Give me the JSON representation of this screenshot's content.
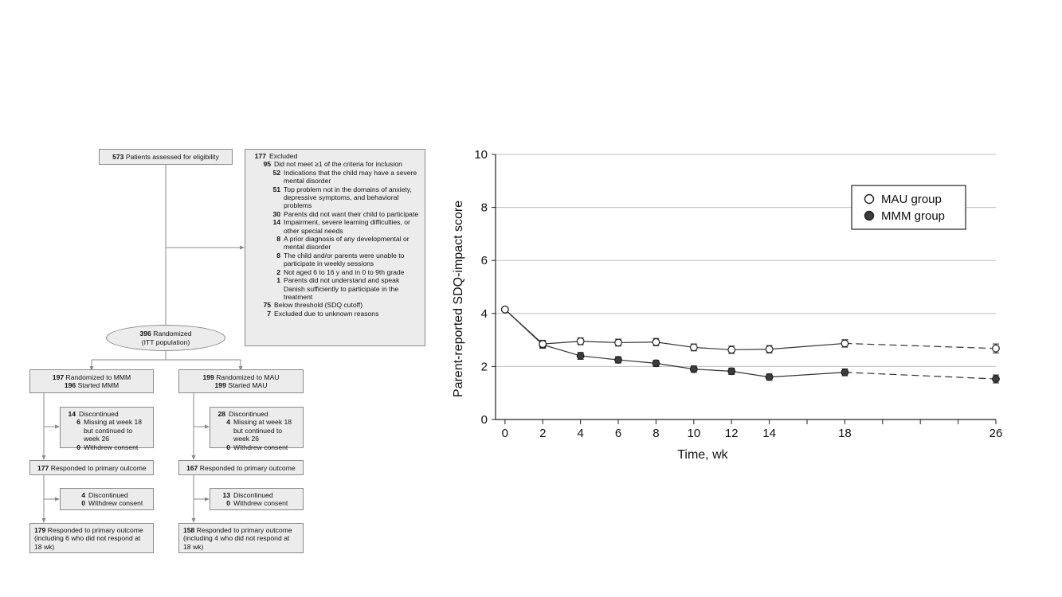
{
  "flow": {
    "assessed": {
      "n": "573",
      "text": "Patients assessed for eligibility"
    },
    "excluded": {
      "n": "177",
      "label": "Excluded",
      "items": [
        {
          "level": 1,
          "n": "95",
          "text": "Did not meet ≥1 of the criteria for inclusion"
        },
        {
          "level": 2,
          "n": "52",
          "text": "Indications that the child may have a severe mental disorder"
        },
        {
          "level": 2,
          "n": "51",
          "text": "Top problem not in the domains of anxiety, depressive symptoms, and behavioral problems"
        },
        {
          "level": 2,
          "n": "30",
          "text": "Parents did not want their child to participate"
        },
        {
          "level": 2,
          "n": "14",
          "text": "Impairment, severe learning difficulties, or other special needs"
        },
        {
          "level": 2,
          "n": "8",
          "text": "A prior diagnosis of any developmental or mental disorder"
        },
        {
          "level": 2,
          "n": "8",
          "text": "The child and/or parents were unable to participate in weekly sessions"
        },
        {
          "level": 2,
          "n": "2",
          "text": "Not aged 6 to 16 y and in 0 to 9th grade"
        },
        {
          "level": 2,
          "n": "1",
          "text": "Parents did not understand and speak Danish sufficiently to participate in the treatment"
        },
        {
          "level": 1,
          "n": "75",
          "text": "Below threshold (SDQ cutoff)"
        },
        {
          "level": 1,
          "n": "7",
          "text": "Excluded due to unknown reasons"
        }
      ]
    },
    "randomized": {
      "n": "396",
      "text": "Randomized",
      "sub": "(ITT population)"
    },
    "mmm": {
      "alloc": {
        "n1": "197",
        "t1": "Randomized to MMM",
        "n2": "196",
        "t2": "Started MMM"
      },
      "disc1": {
        "n": "14",
        "t": "Discontinued",
        "items": [
          {
            "n": "6",
            "t": "Missing at week 18 but continued to week 26"
          },
          {
            "n": "0",
            "t": "Withdrew consent"
          }
        ]
      },
      "resp1": {
        "n": "177",
        "t": "Responded to primary outcome"
      },
      "disc2": {
        "n": "4",
        "t": "Discontinued",
        "items": [
          {
            "n": "0",
            "t": "Withdrew consent"
          }
        ]
      },
      "resp2": {
        "n": "179",
        "t": "Responded to primary outcome (including 6 who did not respond at 18 wk)"
      }
    },
    "mau": {
      "alloc": {
        "n1": "199",
        "t1": "Randomized to MAU",
        "n2": "199",
        "t2": "Started MAU"
      },
      "disc1": {
        "n": "28",
        "t": "Discontinued",
        "items": [
          {
            "n": "4",
            "t": "Missing at week 18 but continued to week 26"
          },
          {
            "n": "0",
            "t": "Withdrew consent"
          }
        ]
      },
      "resp1": {
        "n": "167",
        "t": "Responded to primary outcome"
      },
      "disc2": {
        "n": "13",
        "t": "Discontinued",
        "items": [
          {
            "n": "0",
            "t": "Withdrew consent"
          }
        ]
      },
      "resp2": {
        "n": "158",
        "t": "Responded to primary outcome (including 4 who did not respond at 18 wk)"
      }
    }
  },
  "chart_data": {
    "type": "line",
    "title": "",
    "xlabel": "Time, wk",
    "ylabel": "Parent-reported SDQ-impact score",
    "xlim": [
      -0.5,
      26
    ],
    "ylim": [
      0,
      10
    ],
    "xticks": [
      0,
      2,
      4,
      6,
      8,
      10,
      12,
      14,
      18,
      26
    ],
    "xticks_minor": [
      16,
      20,
      22,
      24
    ],
    "yticks": [
      0,
      2,
      4,
      6,
      8,
      10
    ],
    "grid": "horizontal",
    "legend": "top-right",
    "dashed_after": 18,
    "series": [
      {
        "name": "MAU group",
        "marker": "open-circle",
        "x": [
          0,
          2,
          4,
          6,
          8,
          10,
          12,
          14,
          18,
          26
        ],
        "y": [
          4.15,
          2.85,
          2.95,
          2.9,
          2.92,
          2.72,
          2.63,
          2.65,
          2.87,
          2.68
        ],
        "err": [
          0.04,
          0.14,
          0.13,
          0.13,
          0.14,
          0.13,
          0.14,
          0.14,
          0.14,
          0.17
        ]
      },
      {
        "name": "MMM group",
        "marker": "filled-circle",
        "x": [
          0,
          2,
          4,
          6,
          8,
          10,
          12,
          14,
          18,
          26
        ],
        "y": [
          4.15,
          2.82,
          2.4,
          2.25,
          2.12,
          1.9,
          1.82,
          1.6,
          1.78,
          1.53
        ],
        "err": [
          0.04,
          0.13,
          0.13,
          0.12,
          0.12,
          0.12,
          0.12,
          0.12,
          0.13,
          0.15
        ]
      }
    ],
    "colors": {
      "line": "#333333",
      "marker_fill": "#3c3c3c",
      "grid": "#bdbdbd"
    }
  }
}
